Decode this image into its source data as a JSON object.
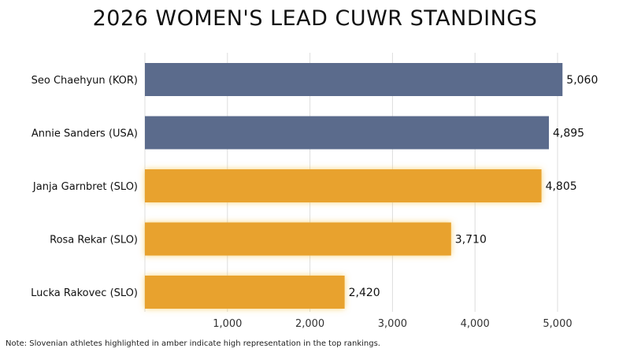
{
  "chart_data": {
    "type": "bar",
    "orientation": "horizontal",
    "title": "2026 WOMEN'S LEAD CUWR STANDINGS",
    "categories": [
      "Seo Chaehyun (KOR)",
      "Annie Sanders (USA)",
      "Janja Garnbret (SLO)",
      "Rosa Rekar (SLO)",
      "Lucka Rakovec (SLO)"
    ],
    "values": [
      5060,
      4895,
      4805,
      3710,
      2420
    ],
    "value_labels": [
      "5,060",
      "4,895",
      "4,805",
      "3,710",
      "2,420"
    ],
    "highlighted": [
      false,
      false,
      true,
      true,
      true
    ],
    "xlim": [
      0,
      5000
    ],
    "xticks": [
      1000,
      2000,
      3000,
      4000,
      5000
    ],
    "xtick_labels": [
      "1,000",
      "2,000",
      "3,000",
      "4,000",
      "5,000"
    ],
    "xlabel": "",
    "ylabel": "",
    "grid": true,
    "colors": {
      "default": "#5b6b8c",
      "highlight": "#e8a22e",
      "grid": "#dddddd"
    },
    "footnote": "Note: Slovenian athletes highlighted in amber indicate high representation in the top rankings."
  }
}
